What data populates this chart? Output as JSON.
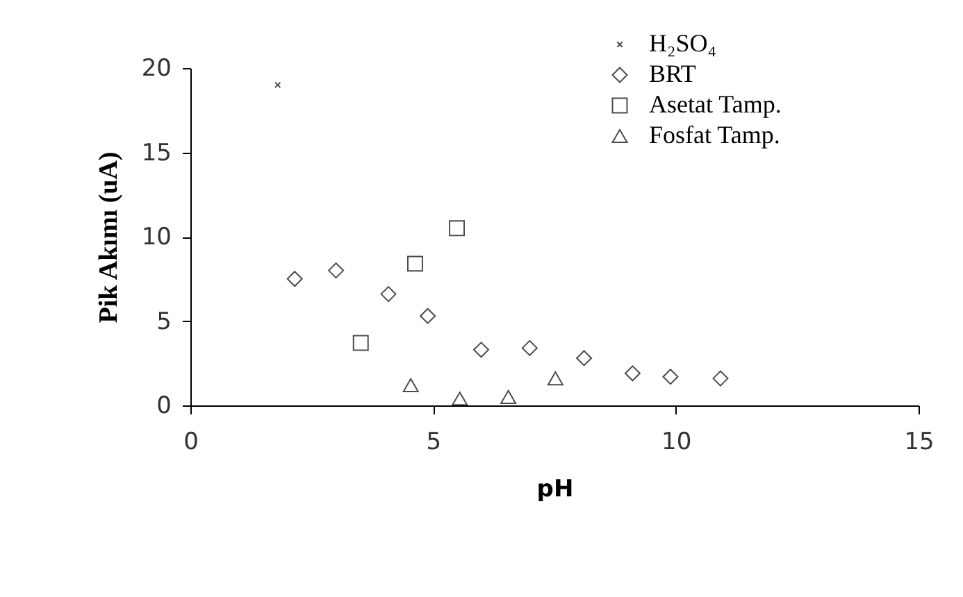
{
  "chart_data": {
    "type": "scatter",
    "xlabel": "pH",
    "ylabel": "Pik Akımı (uA)",
    "xlim": [
      0,
      15
    ],
    "xticks": [
      0,
      5,
      10,
      15
    ],
    "ylim": [
      0,
      20
    ],
    "yticks": [
      0,
      5,
      10,
      15,
      20
    ],
    "grid": false,
    "legend": "top right",
    "series": [
      {
        "name": "H₂SO₄",
        "color": "#000000",
        "marker": "cross",
        "x": [
          1.8
        ],
        "values": [
          19.0
        ]
      },
      {
        "name": "BRT",
        "color": "#000000",
        "marker": "diamond",
        "x": [
          2.15,
          3.0,
          4.08,
          4.89,
          5.99,
          6.99,
          8.11,
          9.11,
          9.89,
          10.92
        ],
        "values": [
          7.5,
          8.0,
          6.6,
          5.3,
          3.3,
          3.4,
          2.8,
          1.9,
          1.7,
          1.6
        ]
      },
      {
        "name": "Asetat Tamp.",
        "color": "#000000",
        "marker": "square",
        "x": [
          3.51,
          4.63,
          5.49
        ],
        "values": [
          3.7,
          8.4,
          10.5
        ]
      },
      {
        "name": "Fosfat Tamp.",
        "color": "#000000",
        "marker": "triangle",
        "x": [
          4.54,
          5.55,
          6.55,
          7.52
        ],
        "values": [
          1.2,
          0.4,
          0.5,
          1.6
        ]
      }
    ]
  }
}
